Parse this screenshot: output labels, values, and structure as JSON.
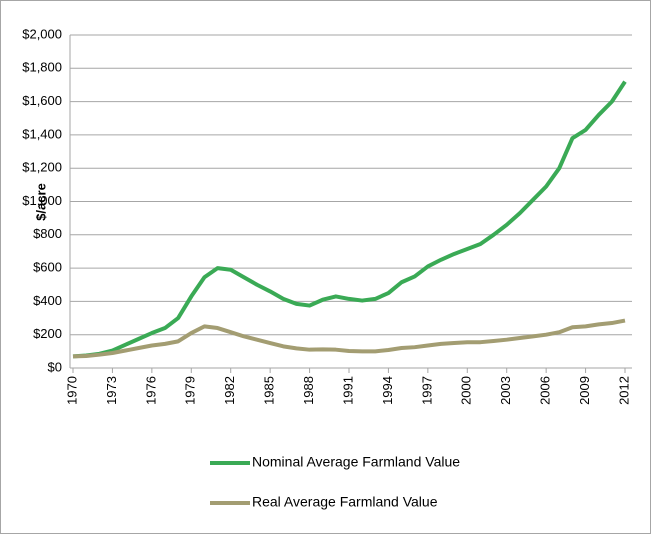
{
  "chart_data": {
    "type": "line",
    "y_label": "$/acre",
    "x": [
      1970,
      1971,
      1972,
      1973,
      1974,
      1975,
      1976,
      1977,
      1978,
      1979,
      1980,
      1981,
      1982,
      1983,
      1984,
      1985,
      1986,
      1987,
      1988,
      1989,
      1990,
      1991,
      1992,
      1993,
      1994,
      1995,
      1996,
      1997,
      1998,
      1999,
      2000,
      2001,
      2002,
      2003,
      2004,
      2005,
      2006,
      2007,
      2008,
      2009,
      2010,
      2011,
      2012
    ],
    "xlim": [
      1970,
      2012
    ],
    "xticks": [
      1970,
      1973,
      1976,
      1979,
      1982,
      1985,
      1988,
      1991,
      1994,
      1997,
      2000,
      2003,
      2006,
      2009,
      2012
    ],
    "ylim": [
      0,
      2000
    ],
    "yticks": [
      {
        "value": 0,
        "label": "$0"
      },
      {
        "value": 200,
        "label": "$200"
      },
      {
        "value": 400,
        "label": "$400"
      },
      {
        "value": 600,
        "label": "$600"
      },
      {
        "value": 800,
        "label": "$800"
      },
      {
        "value": 1000,
        "label": "$1,000"
      },
      {
        "value": 1200,
        "label": "$1,200"
      },
      {
        "value": 1400,
        "label": "$1,400"
      },
      {
        "value": 1600,
        "label": "$1,600"
      },
      {
        "value": 1800,
        "label": "$1,800"
      },
      {
        "value": 2000,
        "label": "$2,000"
      }
    ],
    "grid": true,
    "legend": "bottom",
    "series": [
      {
        "name": "Nominal Average Farmland Value",
        "color": "#3aaa55",
        "values": [
          70,
          75,
          85,
          105,
          140,
          175,
          210,
          240,
          300,
          430,
          545,
          600,
          590,
          545,
          500,
          460,
          415,
          385,
          375,
          410,
          430,
          415,
          405,
          415,
          450,
          515,
          550,
          610,
          650,
          685,
          715,
          745,
          800,
          860,
          930,
          1010,
          1090,
          1200,
          1380,
          1430,
          1520,
          1600,
          1720
        ]
      },
      {
        "name": "Real Average Farmland Value",
        "color": "#a39d72",
        "values": [
          70,
          72,
          80,
          90,
          105,
          120,
          135,
          145,
          160,
          210,
          250,
          240,
          215,
          190,
          170,
          150,
          130,
          118,
          110,
          112,
          110,
          102,
          100,
          100,
          108,
          120,
          125,
          135,
          145,
          150,
          155,
          155,
          162,
          170,
          180,
          190,
          200,
          215,
          245,
          250,
          262,
          270,
          285
        ]
      }
    ]
  }
}
